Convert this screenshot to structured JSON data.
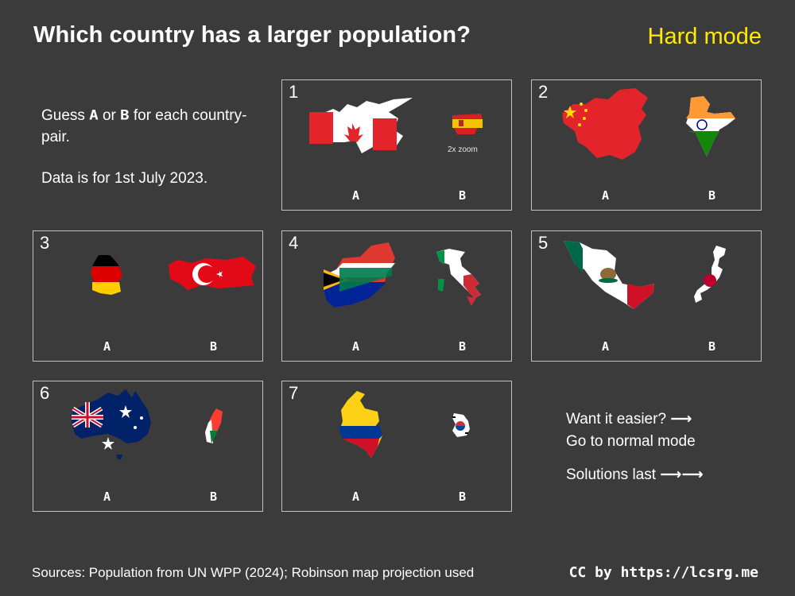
{
  "header": {
    "title": "Which country has a larger population?",
    "mode": "Hard mode"
  },
  "intro": {
    "guess_prefix": "Guess",
    "option_a": "A",
    "or_text": "or",
    "option_b": "B",
    "guess_suffix": "for each country-pair.",
    "data_note": "Data is for 1st July 2023."
  },
  "pairs": [
    {
      "number": "1",
      "a": "A",
      "b": "B",
      "a_flag": "canada-flag-map",
      "b_flag": "spain-flag-map",
      "note": "2x zoom"
    },
    {
      "number": "2",
      "a": "A",
      "b": "B",
      "a_flag": "china-flag-map",
      "b_flag": "india-flag-map"
    },
    {
      "number": "3",
      "a": "A",
      "b": "B",
      "a_flag": "germany-flag-map",
      "b_flag": "turkey-flag-map"
    },
    {
      "number": "4",
      "a": "A",
      "b": "B",
      "a_flag": "south-africa-flag-map",
      "b_flag": "italy-flag-map"
    },
    {
      "number": "5",
      "a": "A",
      "b": "B",
      "a_flag": "mexico-flag-map",
      "b_flag": "japan-flag-map"
    },
    {
      "number": "6",
      "a": "A",
      "b": "B",
      "a_flag": "australia-flag-map",
      "b_flag": "madagascar-flag-map"
    },
    {
      "number": "7",
      "a": "A",
      "b": "B",
      "a_flag": "colombia-flag-map",
      "b_flag": "south-korea-flag-map"
    }
  ],
  "side": {
    "easier_line1": "Want it easier?",
    "easier_line2": "Go to normal mode",
    "solutions": "Solutions last"
  },
  "footer": {
    "sources": "Sources: Population from UN WPP (2024); Robinson map projection used",
    "credit": "CC by https://lcsrg.me"
  },
  "colors": {
    "background": "#3b3b3b",
    "accent": "#ffea00",
    "border": "#bfbfbf"
  }
}
